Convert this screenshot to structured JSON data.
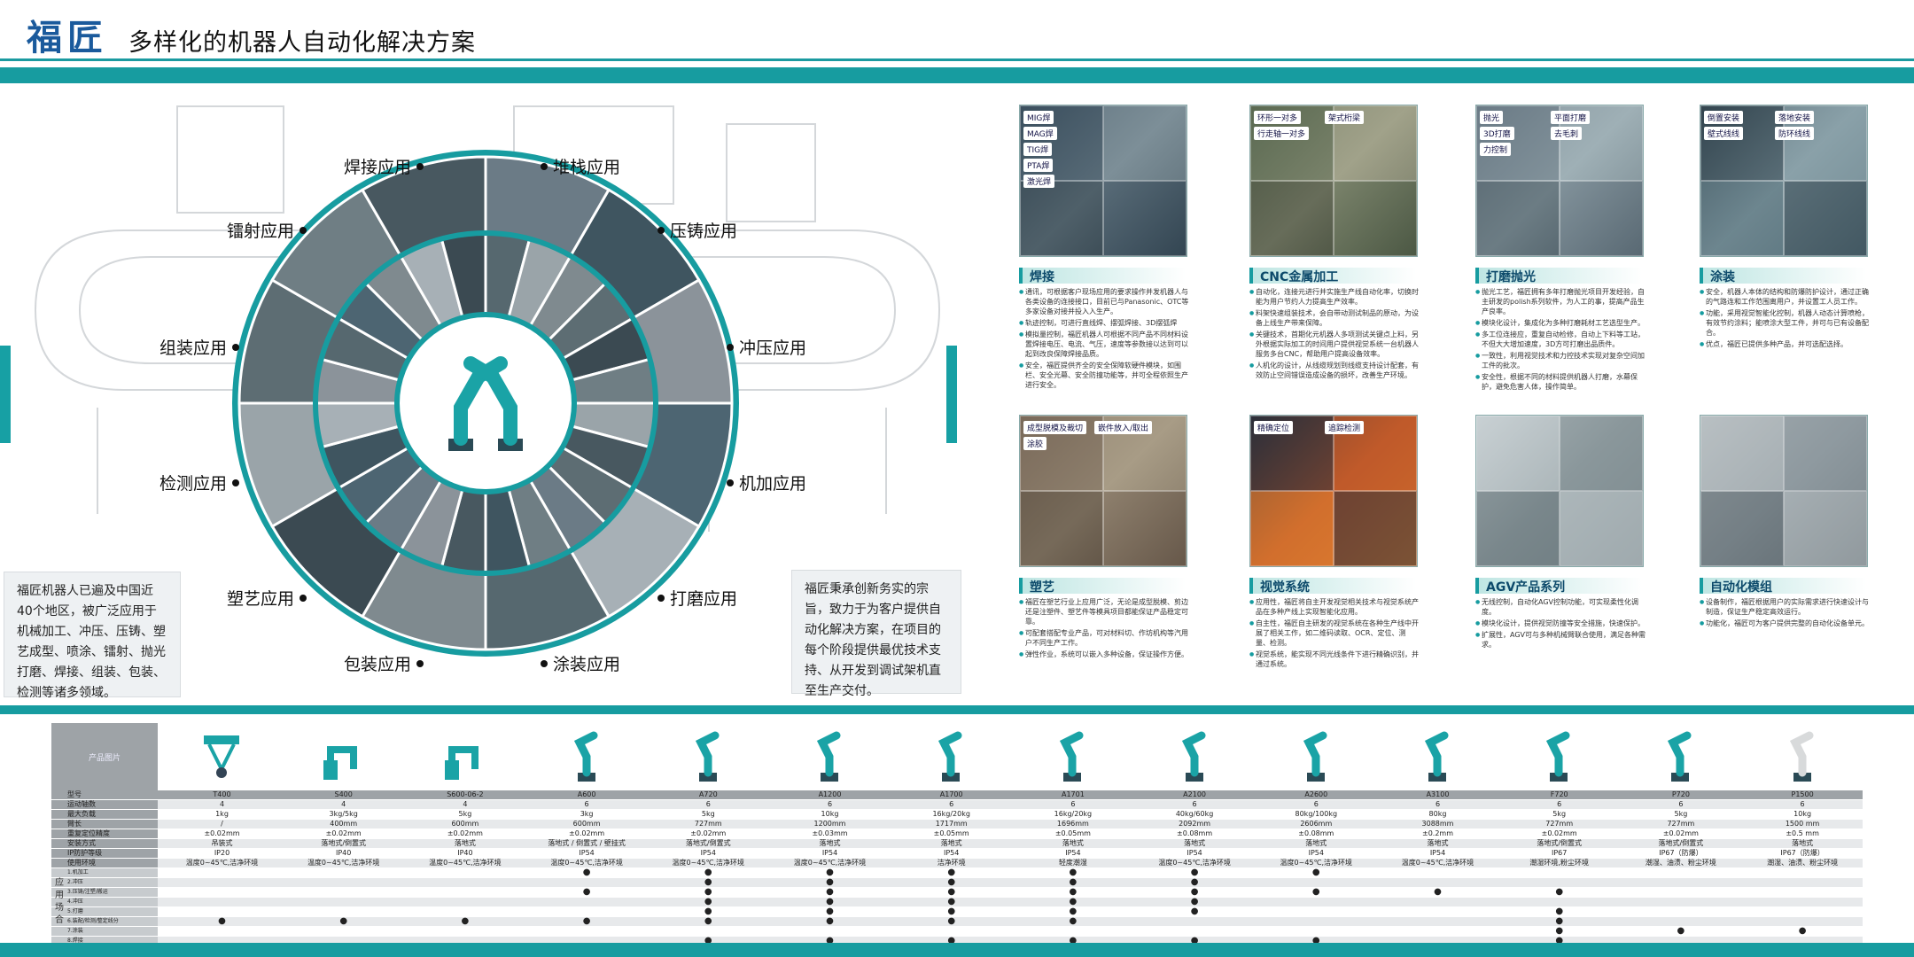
{
  "header": {
    "brand": "福匠",
    "title": "多样化的机器人自动化解决方案"
  },
  "colors": {
    "accent": "#179ca0",
    "brand": "#1a5a9c",
    "panel": "#eef1f3"
  },
  "wheel": {
    "labels": [
      "焊接应用",
      "堆栈应用",
      "镭射应用",
      "压铸应用",
      "组装应用",
      "冲压应用",
      "检测应用",
      "机加应用",
      "塑艺应用",
      "打磨应用",
      "包装应用",
      "涂装应用"
    ]
  },
  "left_info": "福匠机器人已遍及中国近40个地区，被广泛应用于机械加工、冲压、压铸、塑艺成型、喷涂、镭射、抛光打磨、焊接、组装、包装、检测等诸多领域。",
  "right_info": "福匠秉承创新务实的宗旨，致力于为客户提供自动化解决方案，在项目的每个阶段提供最优技术支持、从开发到调试架机直至生产交付。",
  "solutions": [
    {
      "title": "焊接",
      "tags": [
        "MIG焊",
        "MAG焊",
        "TIG焊",
        "PTA焊",
        "激光焊"
      ],
      "bullets": [
        "通讯，可根据客户现场应用的要求操作并发机器人与各类设备的连接接口，目前已与Panasonic、OTC等多家设备对接并投入入生产。",
        "轨迹控制，可进行直线焊、摆弧焊接、3D摆弧焊",
        "模拟量控制，福匠机器人可根据不同产品不同材料设置焊接电压、电流、气压，速度等参数接以达到可以起到改良保障焊接品质。",
        "安全，福匠提供齐全的安全保障软硬件模块，如围栏、安全光幕、安全防撞功能等，并可全程依照生产进行安全。"
      ]
    },
    {
      "title": "CNC金属加工",
      "tags": [
        "环形一对多",
        "架式桁梁",
        "行走轴一对多"
      ],
      "bullets": [
        "自动化，连接元进行并实施生产线自动化率，切换时能为用户节约人力提高生产效率。",
        "料架快速组装技术，会自带动测试制品的原动，为设备上线生产带来保障。",
        "关键技术，首期化元机器人多项测试关键点上料，另外根据实际加工的时间用户提供视觉系统一台机器人服务多台CNC，帮助用户提高设备效率。",
        "人机化的设计，从线缆规划到线缆支持设计配套，有效防止空间错误造成设备的损坏，改善生产环境。"
      ]
    },
    {
      "title": "打磨抛光",
      "tags": [
        "抛光",
        "平面打磨",
        "3D打磨",
        "去毛刺",
        "力控制"
      ],
      "bullets": [
        "抛光工艺，福匠拥有多年打磨抛光项目开发经验，自主研发的polish系列软件，为人工的事，提高产品生产良率。",
        "模块化设计，集成化为多种打磨耗材工艺选型生产。",
        "多工位连接应，重复自动检修，自动上下料等工站，不但大大增加速度，3D方可打磨出品质件。",
        "一致性，利用视觉技术和力控技术实现对复杂空间加工件的批次。",
        "安全性，根据不同的材料提供机器人打磨，水幕保护，避免危害人体，操作简单。"
      ]
    },
    {
      "title": "涂装",
      "tags": [
        "倒置安装",
        "落地安装",
        "壁式线线",
        "防环线线"
      ],
      "bullets": [
        "安全，机器人本体的结构和防爆防护设计，通过正确的气路连和工作范围离用户，并设置工人员工作。",
        "功能，采用视觉智能化控制，机器人动态计算喷枪，有效节约涂料；能喷涂大型工件，并可与已有设备配合。",
        "优点，福匠已提供多种产品，并可选配选择。"
      ]
    },
    {
      "title": "塑艺",
      "tags": [
        "成型脱模及裁切",
        "嵌件放入/取出",
        "涂胶"
      ],
      "bullets": [
        "福匠在塑艺行业上应用广泛，无论是成型脱模、剪边还是注塑件、塑艺件等模具项目都能保证产品稳定可靠。",
        "可配套搭配专业产品，可对材料切、作坊机构等汽用户不同生产工作。",
        "弹性作业，系统可以嵌入多种设备，保证操作方便。"
      ]
    },
    {
      "title": "视觉系统",
      "tags": [
        "精确定位",
        "追踪检测"
      ],
      "bullets": [
        "应用性，福匠将自主开发视觉相关技术与视觉系统产品在多种产线上实现智能化应用。",
        "自主性，福匠自主研发的视觉系统在各种生产线中开展了相关工作，如二维码读取、OCR、定位、测量、检测。",
        "视觉系统，能实现不同光线条件下进行精确识别，并通过系统。"
      ]
    },
    {
      "title": "AGV产品系列",
      "tags": [],
      "bullets": [
        "无线控制，自动化AGV控制功能，可实现柔性化调度。",
        "模块化设计，提供视觉防撞等安全措施，快速保护。",
        "扩展性，AGV可与多种机械臂联合使用，满足各种需求。"
      ]
    },
    {
      "title": "自动化模组",
      "tags": [],
      "bullets": [
        "设备制作，福匠根据用户的实际需求进行快速设计与制造，保证生产稳定高效运行。",
        "功能化，福匠可为客户提供完整的自动化设备单元。"
      ]
    }
  ],
  "table": {
    "header_label": "产品图片",
    "models": [
      "T400",
      "S400",
      "S600-06-2",
      "A600",
      "A720",
      "A1200",
      "A1700",
      "A1701",
      "A2100",
      "A2600",
      "A3100",
      "F720",
      "P720",
      "P1500"
    ],
    "rows": [
      {
        "label": "型号",
        "key": "models"
      },
      {
        "label": "运动轴数",
        "values": [
          "4",
          "4",
          "4",
          "6",
          "6",
          "6",
          "6",
          "6",
          "6",
          "6",
          "6",
          "6",
          "6",
          "6"
        ]
      },
      {
        "label": "最大负载",
        "values": [
          "1kg",
          "3kg/5kg",
          "5kg",
          "3kg",
          "5kg",
          "10kg",
          "16kg/20kg",
          "16kg/20kg",
          "40kg/60kg",
          "80kg/100kg",
          "80kg",
          "5kg",
          "5kg",
          "10kg"
        ]
      },
      {
        "label": "臂长",
        "values": [
          "/",
          "400mm",
          "600mm",
          "600mm",
          "727mm",
          "1200mm",
          "1717mm",
          "1696mm",
          "2092mm",
          "2606mm",
          "3088mm",
          "727mm",
          "727mm",
          "1500 mm"
        ]
      },
      {
        "label": "重复定位精度",
        "values": [
          "±0.02mm",
          "±0.02mm",
          "±0.02mm",
          "±0.02mm",
          "±0.02mm",
          "±0.03mm",
          "±0.05mm",
          "±0.05mm",
          "±0.08mm",
          "±0.08mm",
          "±0.2mm",
          "±0.02mm",
          "±0.02mm",
          "±0.5 mm"
        ]
      },
      {
        "label": "安装方式",
        "values": [
          "吊装式",
          "落地式/倒置式",
          "落地式",
          "落地式 / 倒置式 / 壁挂式",
          "落地式/倒置式",
          "落地式",
          "落地式",
          "落地式",
          "落地式",
          "落地式",
          "落地式",
          "落地式/倒置式",
          "落地式/倒置式",
          "落地式"
        ]
      },
      {
        "label": "IP防护等级",
        "values": [
          "IP20",
          "IP40",
          "IP40",
          "IP54",
          "IP54",
          "IP54",
          "IP54",
          "IP54",
          "IP54",
          "IP54",
          "IP54",
          "IP67",
          "IP67（防爆）",
          "IP67（防爆）"
        ]
      },
      {
        "label": "使用环境",
        "values": [
          "温度0~45℃,洁净环境",
          "温度0~45℃,洁净环境",
          "温度0~45℃,洁净环境",
          "温度0~45℃,洁净环境",
          "温度0~45℃,洁净环境",
          "温度0~45℃,洁净环境",
          "洁净环境",
          "轻度潮湿",
          "温度0~45℃,洁净环境",
          "温度0~45℃,洁净环境",
          "温度0~45℃,洁净环境",
          "潮湿环境,粉尘环境",
          "潮湿、油渍、粉尘环境",
          "潮湿、油渍、粉尘环境"
        ]
      }
    ],
    "app_label": "应用场合",
    "app_rows": [
      {
        "label": "1.机加工",
        "dots": [
          0,
          0,
          0,
          1,
          1,
          1,
          1,
          1,
          1,
          1,
          0,
          0,
          0,
          0
        ]
      },
      {
        "label": "2.冲压",
        "dots": [
          0,
          0,
          0,
          0,
          1,
          1,
          1,
          1,
          1,
          0,
          0,
          0,
          0,
          0
        ]
      },
      {
        "label": "3.压铸/注塑/搬运",
        "dots": [
          0,
          0,
          0,
          1,
          1,
          1,
          1,
          1,
          1,
          1,
          1,
          1,
          0,
          0
        ]
      },
      {
        "label": "4.冲压",
        "dots": [
          0,
          0,
          0,
          0,
          1,
          1,
          1,
          1,
          1,
          0,
          0,
          0,
          0,
          0
        ]
      },
      {
        "label": "5.打磨",
        "dots": [
          0,
          0,
          0,
          0,
          1,
          1,
          1,
          1,
          1,
          0,
          0,
          1,
          0,
          0
        ]
      },
      {
        "label": "6.装配/检测/整定线分",
        "dots": [
          1,
          1,
          1,
          1,
          1,
          1,
          1,
          1,
          0,
          0,
          0,
          1,
          0,
          0
        ]
      },
      {
        "label": "7.涂装",
        "dots": [
          0,
          0,
          0,
          0,
          0,
          0,
          0,
          0,
          0,
          0,
          0,
          1,
          1,
          1
        ]
      },
      {
        "label": "8.焊接",
        "dots": [
          0,
          0,
          0,
          0,
          1,
          1,
          1,
          1,
          1,
          1,
          0,
          1,
          0,
          0
        ]
      },
      {
        "label": "9.检测",
        "dots": [
          1,
          1,
          1,
          1,
          1,
          1,
          1,
          0,
          0,
          0,
          0,
          1,
          0,
          0
        ]
      }
    ]
  }
}
